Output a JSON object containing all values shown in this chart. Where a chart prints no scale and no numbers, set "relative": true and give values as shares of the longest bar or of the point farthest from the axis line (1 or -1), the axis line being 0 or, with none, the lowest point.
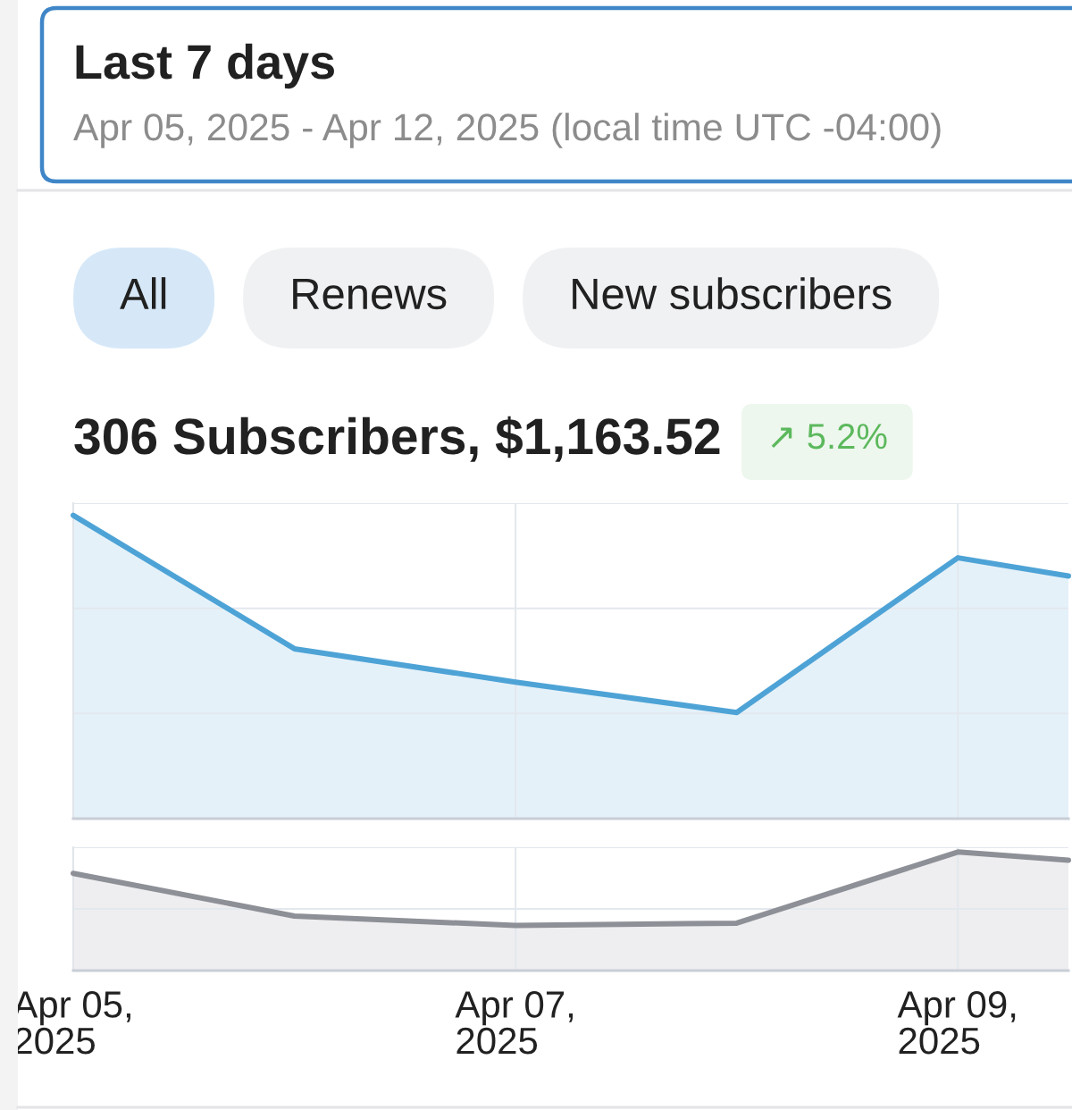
{
  "chart_data": [
    {
      "type": "other",
      "title": "Last 7 days",
      "subtitle": "Apr 05, 2025 - Apr 12, 2025 (local time UTC -04:00)",
      "annotations": [
        "All",
        "Renews",
        "New subscribers"
      ]
    },
    {
      "type": "area",
      "title": "306 Subscribers, $1,163.52",
      "annotations": [
        "↗ 5.2%"
      ],
      "relative": true,
      "x": [
        "2025-04-05",
        "2025-04-06",
        "2025-04-07",
        "2025-04-08",
        "2025-04-09",
        "2025-04-09T12:00"
      ],
      "values": [
        1,
        0.56,
        0.45,
        0.35,
        0.86,
        0.8
      ],
      "color": "#4ea3d6",
      "xlim": [
        "2025-04-05",
        "2025-04-09T12:00"
      ],
      "xticks": [
        {
          "value": "2025-04-05",
          "label": null
        },
        {
          "value": "2025-04-07",
          "label": null
        },
        {
          "value": "2025-04-09",
          "label": null
        }
      ],
      "grid": true,
      "tick_labels": false
    },
    {
      "type": "area",
      "relative": true,
      "x": [
        "2025-04-05",
        "2025-04-06",
        "2025-04-07",
        "2025-04-08",
        "2025-04-09",
        "2025-04-09T12:00"
      ],
      "values": [
        0.82,
        0.46,
        0.38,
        0.4,
        1,
        0.93
      ],
      "color": "#8e9097",
      "xlim": [
        "2025-04-05",
        "2025-04-09T12:00"
      ],
      "xticks": [
        {
          "value": "2025-04-05",
          "label": "Apr 05,\n2025"
        },
        {
          "value": "2025-04-07",
          "label": "Apr 07,\n2025"
        },
        {
          "value": "2025-04-09",
          "label": "Apr 09,\n2025"
        }
      ],
      "grid": true,
      "tick_labels": "x"
    }
  ]
}
